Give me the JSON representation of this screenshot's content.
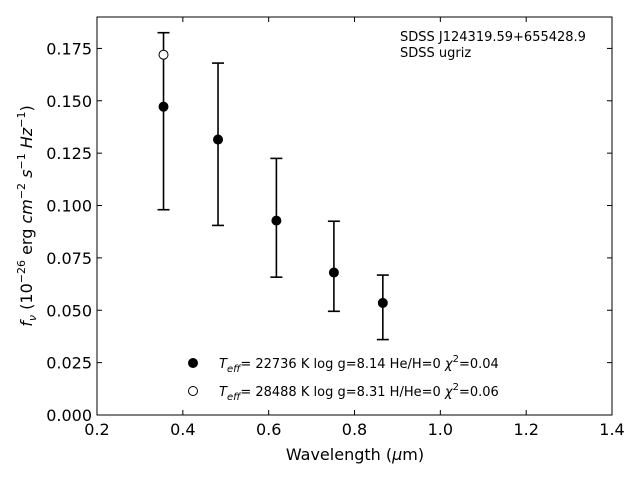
{
  "chart_data": {
    "type": "scatter",
    "title": "",
    "xlabel": "Wavelength (μm)",
    "ylabel": "f_ν (10⁻²⁶ erg cm⁻² s⁻¹ Hz⁻¹)",
    "xlim": [
      0.2,
      1.4
    ],
    "ylim": [
      0.0,
      0.19
    ],
    "x_ticks": [
      0.2,
      0.4,
      0.6,
      0.8,
      1.0,
      1.2,
      1.4
    ],
    "x_tick_labels": [
      "0.2",
      "0.4",
      "0.6",
      "0.8",
      "1.0",
      "1.2",
      "1.4"
    ],
    "y_ticks": [
      0.0,
      0.025,
      0.05,
      0.075,
      0.1,
      0.125,
      0.15,
      0.175
    ],
    "y_tick_labels": [
      "0.000",
      "0.025",
      "0.050",
      "0.075",
      "0.100",
      "0.125",
      "0.150",
      "0.175"
    ],
    "grid": false,
    "annotations": [
      "SDSS J124319.59+655428.9",
      "SDSS ugriz"
    ],
    "series": [
      {
        "marker": "filled-circle",
        "points": [
          {
            "x": 0.355,
            "y": 0.1472
          },
          {
            "x": 0.482,
            "y": 0.1315
          },
          {
            "x": 0.618,
            "y": 0.0928
          },
          {
            "x": 0.752,
            "y": 0.068
          },
          {
            "x": 0.866,
            "y": 0.0535
          }
        ]
      },
      {
        "marker": "open-circle",
        "points": [
          {
            "x": 0.355,
            "y": 0.172
          }
        ]
      }
    ],
    "error_bars": [
      {
        "x": 0.355,
        "low": 0.098,
        "high": 0.1825
      },
      {
        "x": 0.482,
        "low": 0.0905,
        "high": 0.168
      },
      {
        "x": 0.618,
        "low": 0.0658,
        "high": 0.1225
      },
      {
        "x": 0.752,
        "low": 0.0495,
        "high": 0.0925
      },
      {
        "x": 0.866,
        "low": 0.036,
        "high": 0.0668
      }
    ],
    "legend": {
      "placement": "lower-center",
      "entries": [
        {
          "marker": "filled-circle",
          "label": "T_eff= 22736 K  log g=8.14  He/H=0  χ²=0.04"
        },
        {
          "marker": "open-circle",
          "label": "T_eff= 28488 K  log g=8.31  H/He=0  χ²=0.06"
        }
      ]
    }
  }
}
